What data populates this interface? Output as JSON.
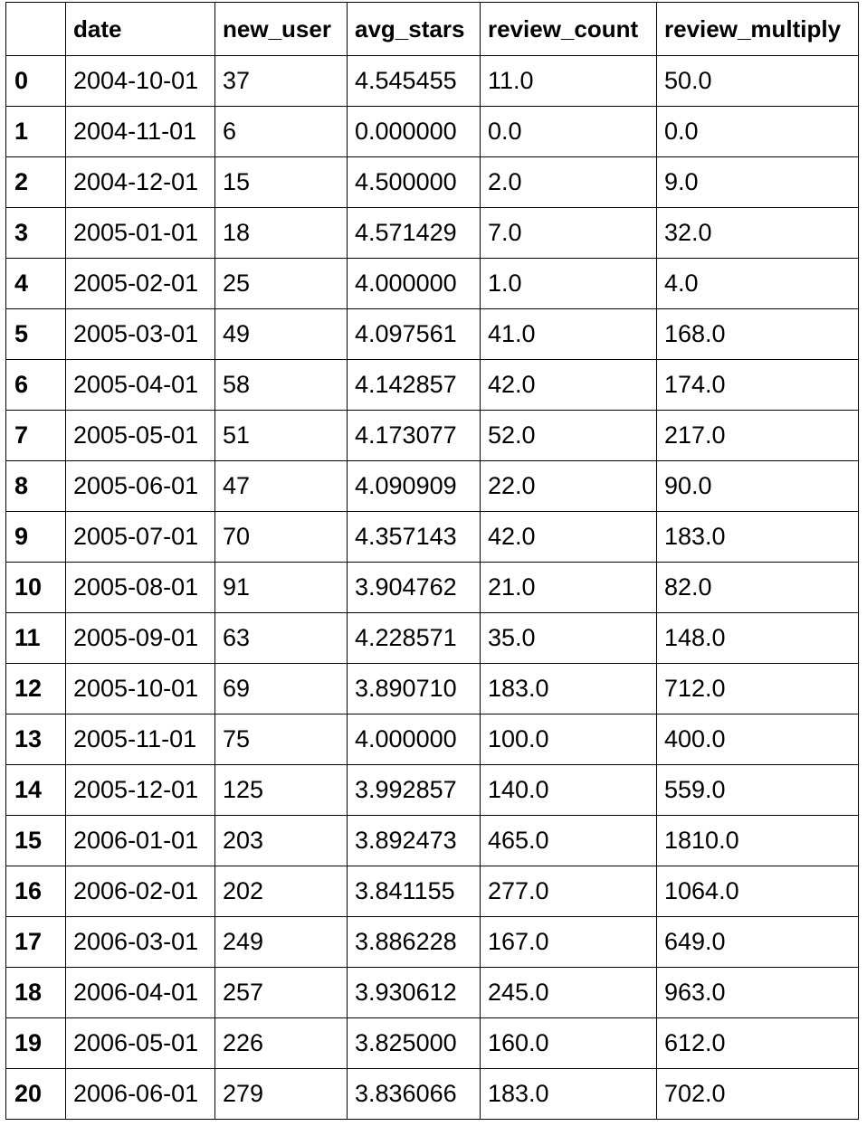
{
  "table": {
    "index_header": "",
    "columns": [
      "date",
      "new_user",
      "avg_stars",
      "review_count",
      "review_multiply"
    ],
    "rows": [
      {
        "index": "0",
        "cells": [
          "2004-10-01",
          "37",
          "4.545455",
          "11.0",
          "50.0"
        ]
      },
      {
        "index": "1",
        "cells": [
          "2004-11-01",
          "6",
          "0.000000",
          "0.0",
          "0.0"
        ]
      },
      {
        "index": "2",
        "cells": [
          "2004-12-01",
          "15",
          "4.500000",
          "2.0",
          "9.0"
        ]
      },
      {
        "index": "3",
        "cells": [
          "2005-01-01",
          "18",
          "4.571429",
          "7.0",
          "32.0"
        ]
      },
      {
        "index": "4",
        "cells": [
          "2005-02-01",
          "25",
          "4.000000",
          "1.0",
          "4.0"
        ]
      },
      {
        "index": "5",
        "cells": [
          "2005-03-01",
          "49",
          "4.097561",
          "41.0",
          "168.0"
        ]
      },
      {
        "index": "6",
        "cells": [
          "2005-04-01",
          "58",
          "4.142857",
          "42.0",
          "174.0"
        ]
      },
      {
        "index": "7",
        "cells": [
          "2005-05-01",
          "51",
          "4.173077",
          "52.0",
          "217.0"
        ]
      },
      {
        "index": "8",
        "cells": [
          "2005-06-01",
          "47",
          "4.090909",
          "22.0",
          "90.0"
        ]
      },
      {
        "index": "9",
        "cells": [
          "2005-07-01",
          "70",
          "4.357143",
          "42.0",
          "183.0"
        ]
      },
      {
        "index": "10",
        "cells": [
          "2005-08-01",
          "91",
          "3.904762",
          "21.0",
          "82.0"
        ]
      },
      {
        "index": "11",
        "cells": [
          "2005-09-01",
          "63",
          "4.228571",
          "35.0",
          "148.0"
        ]
      },
      {
        "index": "12",
        "cells": [
          "2005-10-01",
          "69",
          "3.890710",
          "183.0",
          "712.0"
        ]
      },
      {
        "index": "13",
        "cells": [
          "2005-11-01",
          "75",
          "4.000000",
          "100.0",
          "400.0"
        ]
      },
      {
        "index": "14",
        "cells": [
          "2005-12-01",
          "125",
          "3.992857",
          "140.0",
          "559.0"
        ]
      },
      {
        "index": "15",
        "cells": [
          "2006-01-01",
          "203",
          "3.892473",
          "465.0",
          "1810.0"
        ]
      },
      {
        "index": "16",
        "cells": [
          "2006-02-01",
          "202",
          "3.841155",
          "277.0",
          "1064.0"
        ]
      },
      {
        "index": "17",
        "cells": [
          "2006-03-01",
          "249",
          "3.886228",
          "167.0",
          "649.0"
        ]
      },
      {
        "index": "18",
        "cells": [
          "2006-04-01",
          "257",
          "3.930612",
          "245.0",
          "963.0"
        ]
      },
      {
        "index": "19",
        "cells": [
          "2006-05-01",
          "226",
          "3.825000",
          "160.0",
          "612.0"
        ]
      },
      {
        "index": "20",
        "cells": [
          "2006-06-01",
          "279",
          "3.836066",
          "183.0",
          "702.0"
        ]
      }
    ]
  }
}
